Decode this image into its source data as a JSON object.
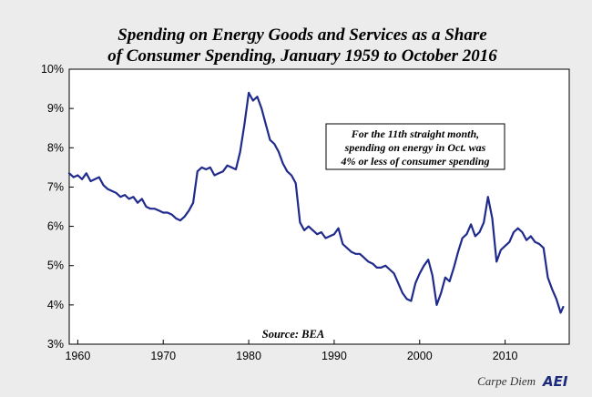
{
  "chart_data": {
    "type": "line",
    "title_lines": [
      "Spending on Energy Goods and Services as a Share",
      "of Consumer Spending, January 1959 to October 2016"
    ],
    "xlabel": "",
    "ylabel": "",
    "xlim": [
      1959,
      2017.5
    ],
    "ylim": [
      3,
      10
    ],
    "x_ticks": [
      1960,
      1970,
      1980,
      1990,
      2000,
      2010
    ],
    "y_ticks": [
      3,
      4,
      5,
      6,
      7,
      8,
      9,
      10
    ],
    "y_tick_labels": [
      "3%",
      "4%",
      "5%",
      "6%",
      "7%",
      "8%",
      "9%",
      "10%"
    ],
    "grid": false,
    "line_color": "#1f2a8c",
    "annotation": [
      "For the 11th straight month,",
      "spending on energy in Oct. was",
      "4% or less of consumer spending"
    ],
    "source": "Source: BEA",
    "series": [
      {
        "x": [
          1959.0,
          1959.5,
          1960.0,
          1960.5,
          1961.0,
          1961.5,
          1962.0,
          1962.5,
          1963.0,
          1963.5,
          1964.0,
          1964.5,
          1965.0,
          1965.5,
          1966.0,
          1966.5,
          1967.0,
          1967.5,
          1968.0,
          1968.5,
          1969.0,
          1969.5,
          1970.0,
          1970.5,
          1971.0,
          1971.5,
          1972.0,
          1972.5,
          1973.0,
          1973.5,
          1974.0,
          1974.5,
          1975.0,
          1975.5,
          1976.0,
          1976.5,
          1977.0,
          1977.5,
          1978.0,
          1978.5,
          1979.0,
          1979.5,
          1980.0,
          1980.5,
          1981.0,
          1981.5,
          1982.0,
          1982.5,
          1983.0,
          1983.5,
          1984.0,
          1984.5,
          1985.0,
          1985.5,
          1986.0,
          1986.5,
          1987.0,
          1987.5,
          1988.0,
          1988.5,
          1989.0,
          1989.5,
          1990.0,
          1990.5,
          1991.0,
          1991.5,
          1992.0,
          1992.5,
          1993.0,
          1993.5,
          1994.0,
          1994.5,
          1995.0,
          1995.5,
          1996.0,
          1996.5,
          1997.0,
          1997.5,
          1998.0,
          1998.5,
          1999.0,
          1999.5,
          2000.0,
          2000.5,
          2001.0,
          2001.5,
          2002.0,
          2002.5,
          2003.0,
          2003.5,
          2004.0,
          2004.5,
          2005.0,
          2005.5,
          2006.0,
          2006.5,
          2007.0,
          2007.5,
          2008.0,
          2008.5,
          2009.0,
          2009.5,
          2010.0,
          2010.5,
          2011.0,
          2011.5,
          2012.0,
          2012.5,
          2013.0,
          2013.5,
          2014.0,
          2014.5,
          2015.0,
          2015.5,
          2016.0,
          2016.5,
          2016.8
        ],
        "values": [
          7.35,
          7.25,
          7.3,
          7.2,
          7.35,
          7.15,
          7.2,
          7.25,
          7.05,
          6.95,
          6.9,
          6.85,
          6.75,
          6.8,
          6.7,
          6.75,
          6.6,
          6.7,
          6.5,
          6.45,
          6.45,
          6.4,
          6.35,
          6.35,
          6.3,
          6.2,
          6.15,
          6.25,
          6.4,
          6.6,
          7.4,
          7.5,
          7.45,
          7.5,
          7.3,
          7.35,
          7.4,
          7.55,
          7.5,
          7.45,
          7.9,
          8.6,
          9.4,
          9.2,
          9.3,
          9.0,
          8.6,
          8.2,
          8.1,
          7.9,
          7.6,
          7.4,
          7.3,
          7.1,
          6.1,
          5.9,
          6.0,
          5.9,
          5.8,
          5.85,
          5.7,
          5.75,
          5.8,
          5.95,
          5.55,
          5.45,
          5.35,
          5.3,
          5.3,
          5.2,
          5.1,
          5.05,
          4.95,
          4.95,
          5.0,
          4.9,
          4.8,
          4.55,
          4.3,
          4.15,
          4.1,
          4.55,
          4.8,
          5.0,
          5.15,
          4.75,
          4.0,
          4.3,
          4.7,
          4.6,
          4.95,
          5.35,
          5.7,
          5.8,
          6.05,
          5.75,
          5.85,
          6.1,
          6.75,
          6.2,
          5.1,
          5.4,
          5.5,
          5.6,
          5.85,
          5.95,
          5.85,
          5.65,
          5.75,
          5.6,
          5.55,
          5.45,
          4.7,
          4.4,
          4.15,
          3.8,
          3.95
        ]
      }
    ]
  },
  "footer": {
    "blog": "Carpe Diem",
    "logo": "AEI"
  }
}
